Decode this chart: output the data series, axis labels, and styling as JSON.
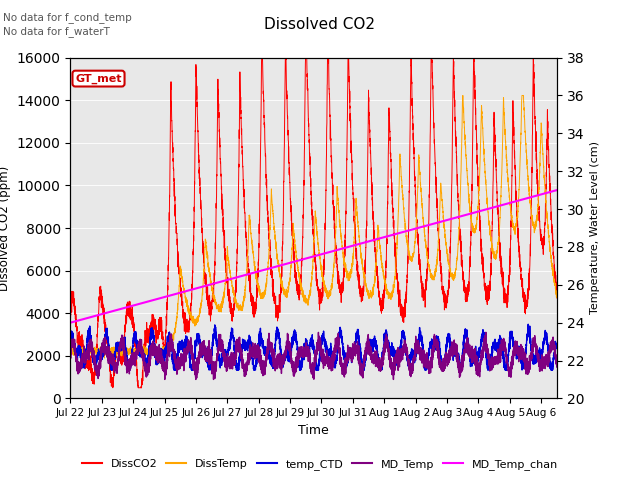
{
  "title": "Dissolved CO2",
  "xlabel": "Time",
  "ylabel_left": "Dissolved CO2 (ppm)",
  "ylabel_right": "Temperature, Water Level (cm)",
  "annotation1": "No data for f_cond_temp",
  "annotation2": "No data for f_waterT",
  "gt_met_label": "GT_met",
  "ylim_left": [
    0,
    16000
  ],
  "ylim_right": [
    20,
    38
  ],
  "yticks_left": [
    0,
    2000,
    4000,
    6000,
    8000,
    10000,
    12000,
    14000,
    16000
  ],
  "yticks_right": [
    20,
    22,
    24,
    26,
    28,
    30,
    32,
    34,
    36,
    38
  ],
  "x_tick_labels": [
    "Jul 22",
    "Jul 23",
    "Jul 24",
    "Jul 25",
    "Jul 26",
    "Jul 27",
    "Jul 28",
    "Jul 29",
    "Jul 30",
    "Jul 31",
    "Aug 1",
    "Aug 2",
    "Aug 3",
    "Aug 4",
    "Aug 5",
    "Aug 6"
  ],
  "colors": {
    "DissCO2": "#ff0000",
    "DissTemp": "#ffa500",
    "temp_CTD": "#0000dd",
    "MD_Temp": "#800080",
    "MD_Temp_chan": "#ff00ff",
    "background": "#e8e8e8",
    "gt_met_box": "#cc0000",
    "gt_met_text": "#cc0000"
  },
  "legend_entries": [
    "DissCO2",
    "DissTemp",
    "temp_CTD",
    "MD_Temp",
    "MD_Temp_chan"
  ]
}
